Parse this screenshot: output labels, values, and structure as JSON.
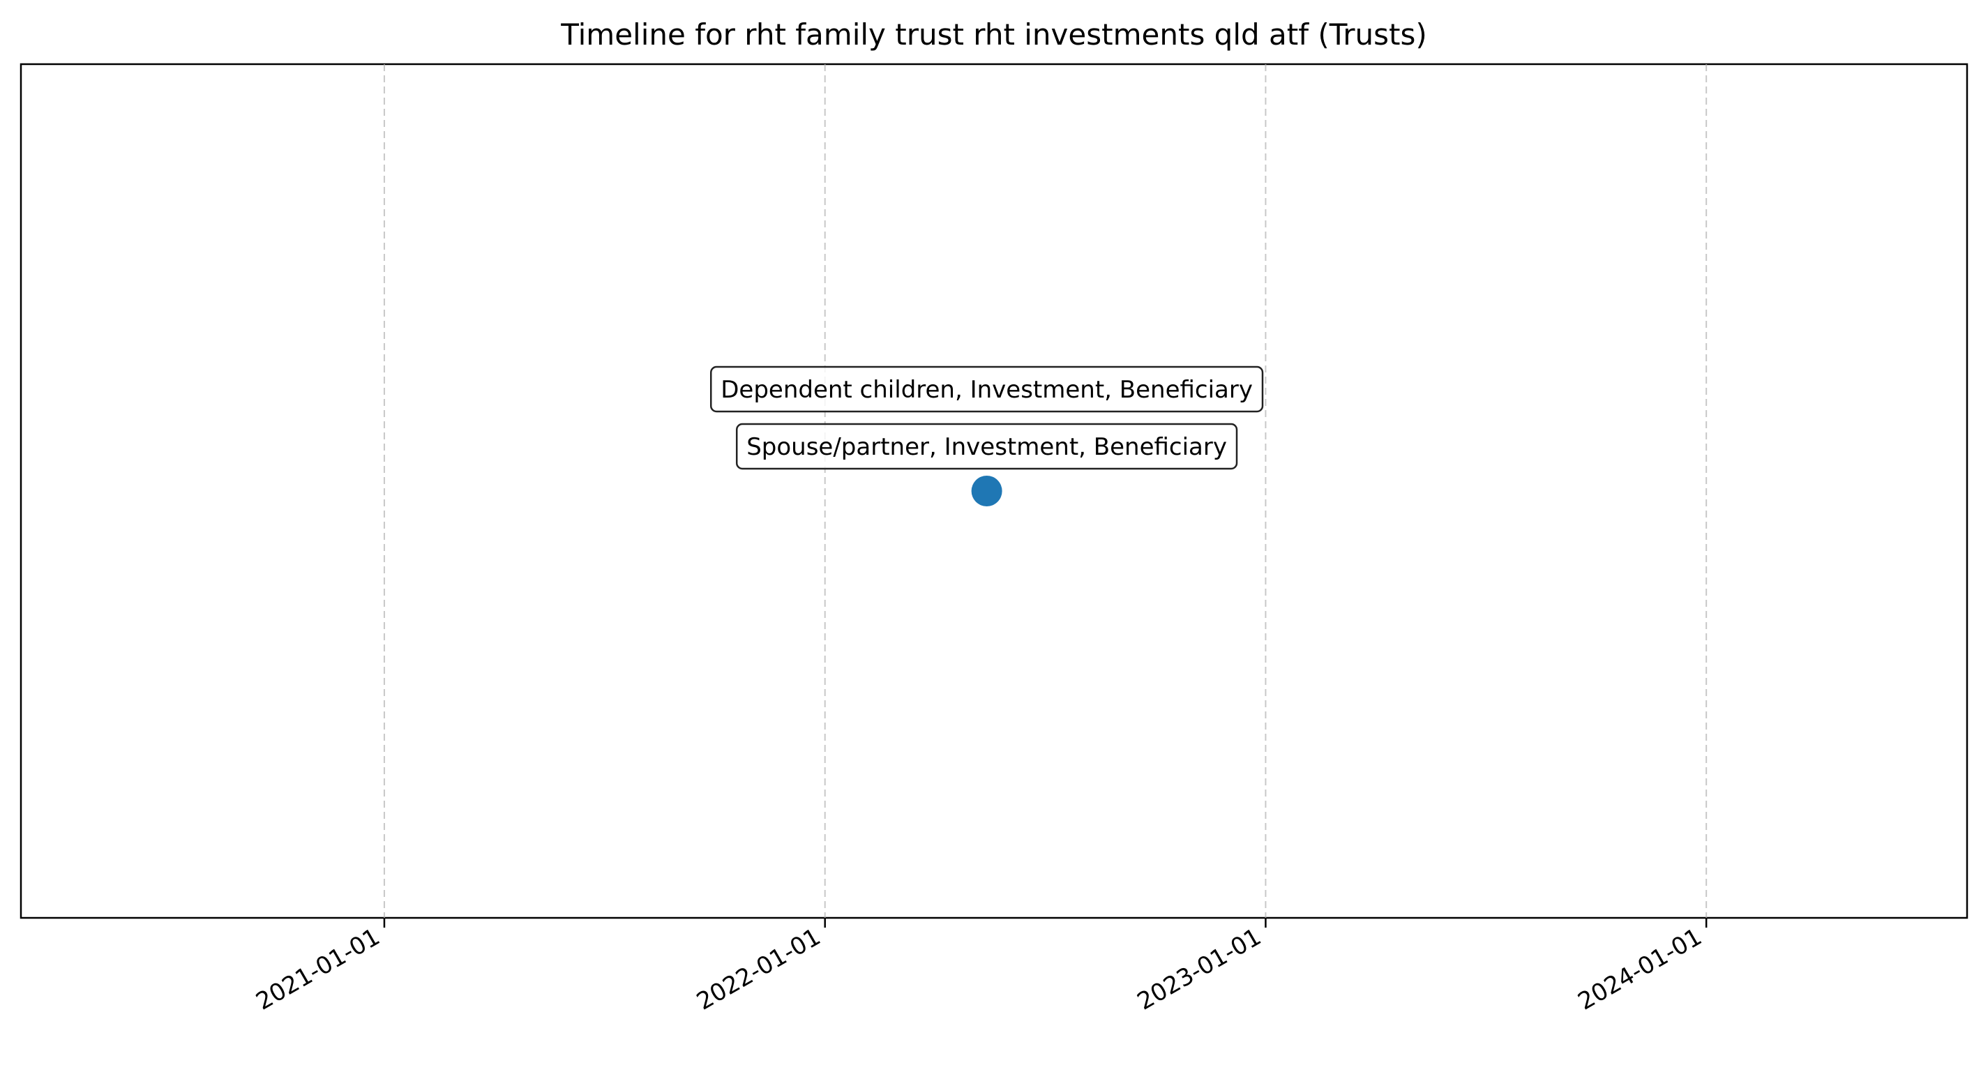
{
  "chart_data": {
    "type": "scatter",
    "title": "Timeline for rht family trust rht investments qld atf (Trusts)",
    "xlabel": "",
    "ylabel": "",
    "x_axis": "date",
    "xlim": [
      "2020-03-06",
      "2024-08-04"
    ],
    "ylim": [
      -1,
      1
    ],
    "x_ticks": [
      "2021-01-01",
      "2022-01-01",
      "2023-01-01",
      "2024-01-01"
    ],
    "y_ticks": [],
    "grid": {
      "x": true,
      "y": false,
      "style": "dashed"
    },
    "series": [
      {
        "color": "#1f77b4",
        "points": [
          {
            "x": "2022-05-15",
            "y": 0
          }
        ]
      }
    ],
    "annotations": [
      {
        "text": "Spouse/partner, Investment, Beneficiary",
        "x": "2022-05-15"
      },
      {
        "text": "Dependent children, Investment, Beneficiary",
        "x": "2022-05-15"
      }
    ]
  }
}
